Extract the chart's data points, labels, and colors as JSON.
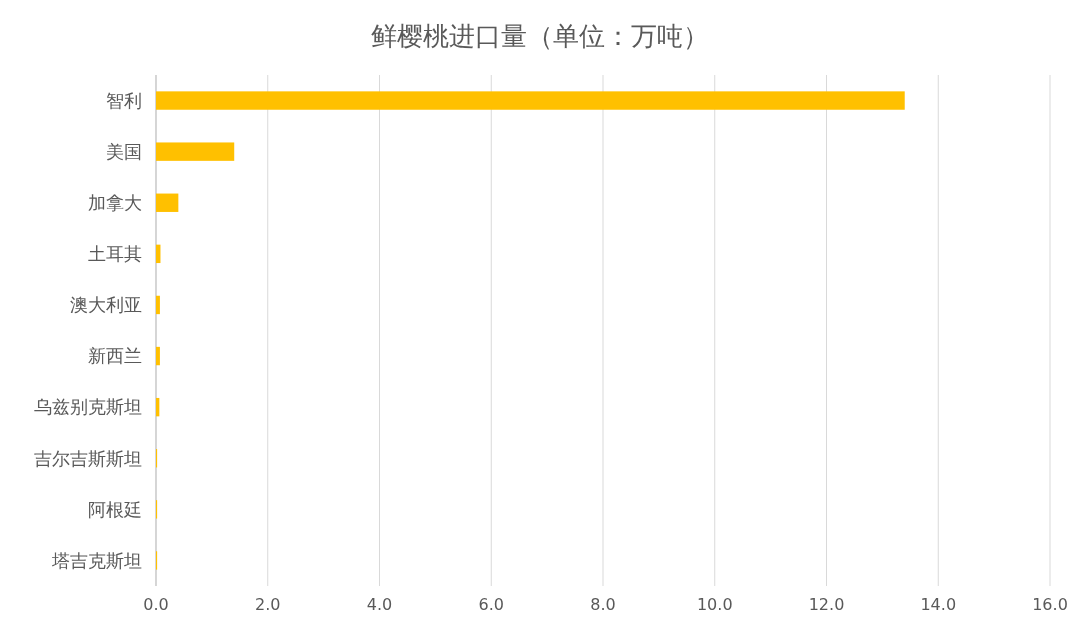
{
  "chart_data": {
    "type": "bar",
    "orientation": "horizontal",
    "title": "鲜樱桃进口量（单位：万吨）",
    "categories": [
      "智利",
      "美国",
      "加拿大",
      "土耳其",
      "澳大利亚",
      "新西兰",
      "乌兹别克斯坦",
      "吉尔吉斯斯坦",
      "阿根廷",
      "塔吉克斯坦"
    ],
    "values": [
      13.4,
      1.4,
      0.4,
      0.08,
      0.07,
      0.07,
      0.06,
      0.02,
      0.02,
      0.02
    ],
    "color": "#ffc000",
    "xlim": [
      0,
      16
    ],
    "xticks": [
      {
        "value": 0,
        "label": "0.0"
      },
      {
        "value": 2,
        "label": "2.0"
      },
      {
        "value": 4,
        "label": "4.0"
      },
      {
        "value": 6,
        "label": "6.0"
      },
      {
        "value": 8,
        "label": "8.0"
      },
      {
        "value": 10,
        "label": "10.0"
      },
      {
        "value": 12,
        "label": "12.0"
      },
      {
        "value": 14,
        "label": "14.0"
      },
      {
        "value": 16,
        "label": "16.0"
      }
    ],
    "grid": "x"
  }
}
